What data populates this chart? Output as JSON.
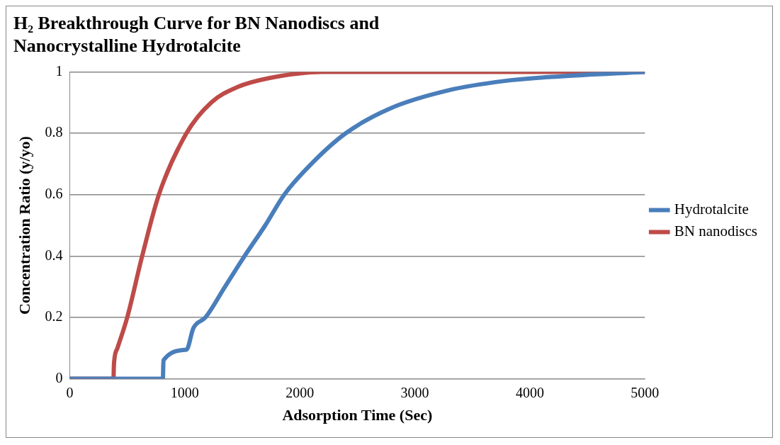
{
  "chart_data": {
    "type": "line",
    "title": "H₂ Breakthrough Curve for BN Nanodiscs and Nanocrystalline Hydrotalcite",
    "xlabel": "Adsorption Time (Sec)",
    "ylabel": "Concentration Ratio (y/yo)",
    "xlim": [
      0,
      5000
    ],
    "xticks": [
      0,
      1000,
      2000,
      3000,
      4000,
      5000
    ],
    "ylim": [
      0,
      1
    ],
    "yticks": [
      0,
      0.2,
      0.4,
      0.6,
      0.8,
      1
    ],
    "grid": "y",
    "legend": "right",
    "marker": "none",
    "line_style": "solid",
    "series": [
      {
        "name": "Hydrotalcite",
        "color": "#4a7ebb",
        "x": [
          0,
          810,
          815,
          1015,
          1075,
          1180,
          1350,
          1520,
          1700,
          1865,
          2100,
          2400,
          2780,
          3295,
          3775,
          4250,
          5000
        ],
        "values": [
          0,
          0,
          0.06,
          0.095,
          0.165,
          0.2,
          0.3,
          0.4,
          0.5,
          0.6,
          0.7,
          0.8,
          0.88,
          0.94,
          0.97,
          0.985,
          1
        ]
      },
      {
        "name": "BN nanodiscs",
        "color": "#be4b48",
        "x": [
          0,
          380,
          385,
          415,
          500,
          630,
          775,
          1015,
          1230,
          1455,
          1740,
          2200,
          5000
        ],
        "values": [
          0,
          0,
          0.05,
          0.1,
          0.2,
          0.4,
          0.6,
          0.8,
          0.9,
          0.95,
          0.98,
          1,
          1
        ]
      }
    ]
  }
}
